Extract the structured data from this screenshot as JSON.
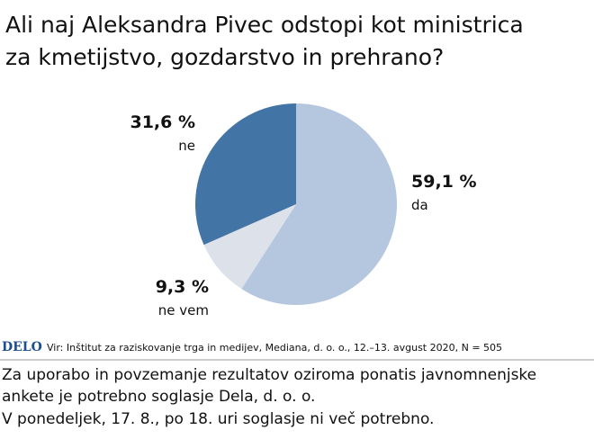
{
  "chart_data": {
    "type": "pie",
    "title": [
      "Ali naj Aleksandra Pivec odstopi kot ministrica",
      "za kmetijstvo, gozdarstvo in prehrano?"
    ],
    "categories": [
      "da",
      "ne vem",
      "ne"
    ],
    "values": [
      59.1,
      9.3,
      31.6
    ],
    "value_labels": [
      "59,1 %",
      "9,3 %",
      "31,6 %"
    ],
    "colors": [
      "#b5c6df",
      "#dde2ea",
      "#4374a6"
    ],
    "logo": "DELO",
    "source": "Vir: Inštitut za raziskovanje trga in medijev, Mediana, d. o. o., 12.–13. avgust 2020, N = 505"
  },
  "notes": [
    "Za uporabo in povzemanje rezultatov oziroma ponatis javnomnenjske",
    "ankete je potrebno soglasje Dela, d. o. o.",
    "V ponedeljek, 17. 8., po 18. uri soglasje ni več potrebno."
  ]
}
